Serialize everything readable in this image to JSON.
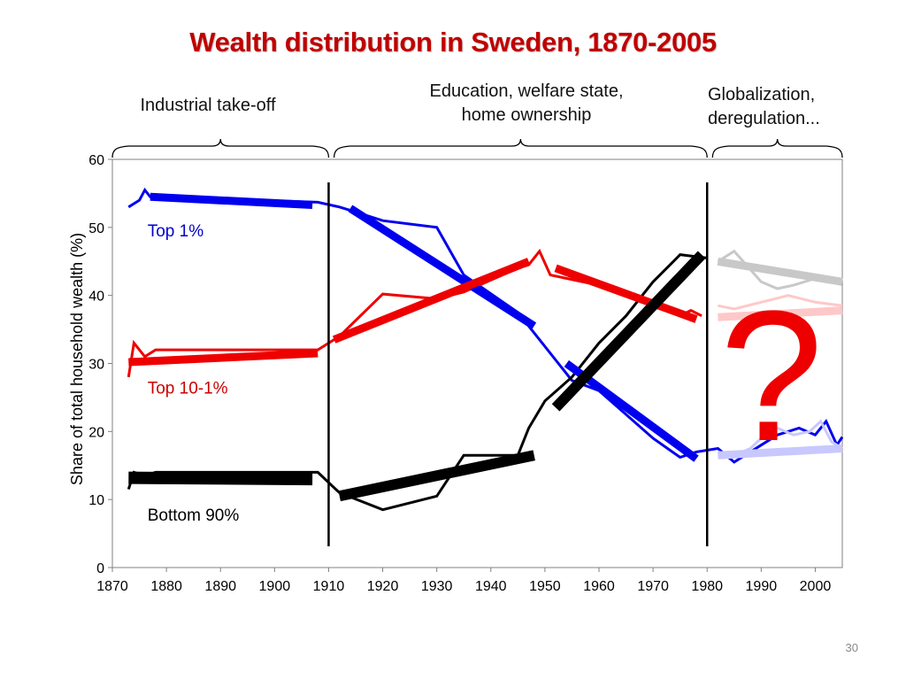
{
  "slide": {
    "number": "30"
  },
  "chart_data": {
    "type": "line",
    "title": "Wealth distribution in Sweden, 1870-2005",
    "ylabel": "Share of total household wealth (%)",
    "xlabel": "",
    "xlim": [
      1870,
      2005
    ],
    "ylim": [
      0,
      60
    ],
    "x_ticks": [
      1870,
      1880,
      1890,
      1900,
      1910,
      1920,
      1930,
      1940,
      1950,
      1960,
      1970,
      1980,
      1990,
      2000
    ],
    "y_ticks": [
      0,
      10,
      20,
      30,
      40,
      50,
      60
    ],
    "grid": false,
    "era_dividers": [
      1910,
      1980
    ],
    "eras": [
      {
        "label_lines": [
          "Industrial take-off"
        ],
        "from": 1870,
        "to": 1910
      },
      {
        "label_lines": [
          "Education, welfare state,",
          "home ownership"
        ],
        "from": 1911,
        "to": 1980
      },
      {
        "label_lines": [
          "Globalization,",
          "deregulation..."
        ],
        "from": 1981,
        "to": 2005
      }
    ],
    "series": [
      {
        "name": "Top 1%",
        "color": "#0000ee",
        "values": [
          [
            1873,
            53
          ],
          [
            1875,
            54
          ],
          [
            1876,
            55.5
          ],
          [
            1877,
            54.5
          ],
          [
            1908,
            53.7
          ],
          [
            1912,
            53
          ],
          [
            1914,
            52.5
          ],
          [
            1920,
            51
          ],
          [
            1930,
            50
          ],
          [
            1935,
            43
          ],
          [
            1945,
            37.5
          ],
          [
            1950,
            32.5
          ],
          [
            1955,
            27.5
          ],
          [
            1960,
            26
          ],
          [
            1965,
            22.5
          ],
          [
            1970,
            19
          ],
          [
            1975,
            16.2
          ],
          [
            1978,
            17
          ],
          [
            1982,
            17.5
          ],
          [
            1985,
            15.5
          ],
          [
            1990,
            18
          ],
          [
            1993,
            19.5
          ],
          [
            1997,
            20.5
          ],
          [
            2000,
            19.5
          ],
          [
            2002,
            21.5
          ],
          [
            2004,
            18
          ],
          [
            2005,
            19.2
          ]
        ],
        "trend": {
          "segments": [
            {
              "points": [
                [
                  1877,
                  54.5
                ],
                [
                  1907,
                  53.3
                ]
              ],
              "width": 9
            },
            {
              "points": [
                [
                  1914,
                  52.8
                ],
                [
                  1948,
                  35.5
                ]
              ],
              "width": 9
            },
            {
              "points": [
                [
                  1954,
                  30
                ],
                [
                  1978,
                  16
                ]
              ],
              "width": 9
            }
          ]
        }
      },
      {
        "name": "Top 10-1%",
        "color": "#ee0000",
        "values": [
          [
            1873,
            28
          ],
          [
            1874,
            33
          ],
          [
            1876,
            31
          ],
          [
            1878,
            32
          ],
          [
            1908,
            32
          ],
          [
            1912,
            34
          ],
          [
            1920,
            40.2
          ],
          [
            1930,
            39.5
          ],
          [
            1935,
            40.5
          ],
          [
            1945,
            44
          ],
          [
            1947,
            44.5
          ],
          [
            1949,
            46.5
          ],
          [
            1951,
            43
          ],
          [
            1960,
            41.5
          ],
          [
            1965,
            40
          ],
          [
            1970,
            38.5
          ],
          [
            1975,
            37
          ],
          [
            1977,
            37.8
          ],
          [
            1979,
            37
          ]
        ],
        "trend": {
          "segments": [
            {
              "points": [
                [
                  1873,
                  30.2
                ],
                [
                  1908,
                  31.5
                ]
              ],
              "width": 9
            },
            {
              "points": [
                [
                  1911,
                  33.5
                ],
                [
                  1947,
                  45
                ]
              ],
              "width": 9
            },
            {
              "points": [
                [
                  1952,
                  44
                ],
                [
                  1978,
                  36.5
                ]
              ],
              "width": 9
            }
          ]
        }
      },
      {
        "name": "Bottom 90%",
        "color": "#000000",
        "values": [
          [
            1873,
            11.5
          ],
          [
            1874,
            14
          ],
          [
            1876,
            13.5
          ],
          [
            1878,
            14
          ],
          [
            1908,
            14
          ],
          [
            1912,
            11
          ],
          [
            1920,
            8.5
          ],
          [
            1930,
            10.5
          ],
          [
            1935,
            16.5
          ],
          [
            1945,
            16.5
          ],
          [
            1947,
            20.5
          ],
          [
            1950,
            24.5
          ],
          [
            1955,
            28
          ],
          [
            1960,
            33
          ],
          [
            1965,
            37
          ],
          [
            1970,
            42
          ],
          [
            1975,
            46
          ],
          [
            1977,
            45.8
          ],
          [
            1980,
            45.5
          ]
        ],
        "trend": {
          "segments": [
            {
              "points": [
                [
                  1873,
                  13.2
                ],
                [
                  1907,
                  13
                ]
              ],
              "width": 14
            },
            {
              "points": [
                [
                  1912,
                  10.5
                ],
                [
                  1948,
                  16.5
                ]
              ],
              "width": 12
            },
            {
              "points": [
                [
                  1952,
                  23.5
                ],
                [
                  1979,
                  46
                ]
              ],
              "width": 12
            }
          ]
        }
      },
      {
        "name": "",
        "color": "#c8c8c8",
        "values": [
          [
            1982,
            45
          ],
          [
            1985,
            46.5
          ],
          [
            1990,
            42
          ],
          [
            1993,
            41
          ],
          [
            1996,
            41.5
          ],
          [
            2000,
            42.5
          ],
          [
            2003,
            42
          ]
        ],
        "trend": {
          "segments": [
            {
              "points": [
                [
                  1982,
                  45
                ],
                [
                  2005,
                  42
                ]
              ],
              "width": 9
            }
          ]
        }
      },
      {
        "name": "",
        "color": "#ffc8c8",
        "values": [
          [
            1982,
            38.5
          ],
          [
            1985,
            38
          ],
          [
            1990,
            39
          ],
          [
            1995,
            40
          ],
          [
            2000,
            39
          ],
          [
            2005,
            38.5
          ]
        ],
        "trend": {
          "segments": [
            {
              "points": [
                [
                  1982,
                  36.8
                ],
                [
                  2005,
                  37.8
                ]
              ],
              "width": 9
            }
          ]
        }
      },
      {
        "name": "",
        "color": "#c8c8ff",
        "values": [
          [
            1982,
            17
          ],
          [
            1985,
            16.5
          ],
          [
            1988,
            17.5
          ],
          [
            1990,
            19
          ],
          [
            1993,
            20.5
          ],
          [
            1996,
            19.5
          ],
          [
            1999,
            20
          ],
          [
            2001,
            21.5
          ],
          [
            2003,
            18.5
          ],
          [
            2005,
            17.5
          ]
        ],
        "trend": {
          "segments": [
            {
              "points": [
                [
                  1982,
                  16.5
                ],
                [
                  2005,
                  17.5
                ]
              ],
              "width": 9
            }
          ]
        }
      }
    ],
    "labels": [
      {
        "text": "Top 1%",
        "color": "#0000cc",
        "x": 1876.5,
        "y": 48.7
      },
      {
        "text": "Top 10-1%",
        "color": "#cc0000",
        "x": 1876.5,
        "y": 25.6
      },
      {
        "text": "Bottom 90%",
        "color": "#000000",
        "x": 1876.5,
        "y": 6.9
      }
    ],
    "annotation": {
      "text": "?",
      "color": "#ee0000"
    }
  }
}
